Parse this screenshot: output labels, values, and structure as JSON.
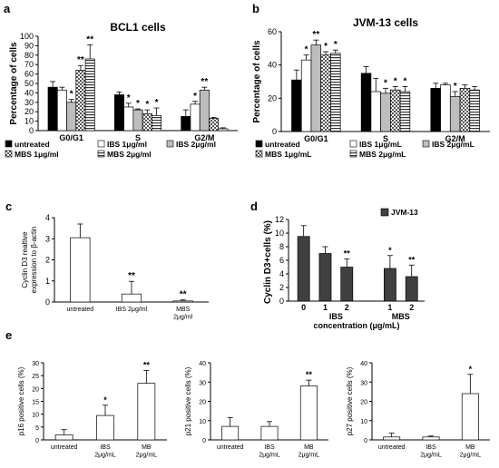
{
  "panels": {
    "a": "a",
    "b": "b",
    "c": "c",
    "d": "d",
    "e": "e"
  },
  "legend_groups": {
    "ab": [
      {
        "name": "untreated",
        "pattern": "p-black"
      },
      {
        "name": "IBS 1μg/ml",
        "pattern": "p-white"
      },
      {
        "name": "IBS 2μg/ml",
        "pattern": "p-gray"
      },
      {
        "name": "MBS 1μg/ml",
        "pattern": "p-check"
      },
      {
        "name": "MBS 2μg/ml",
        "pattern": "p-hstripe"
      }
    ],
    "b": [
      {
        "name": "untreated",
        "pattern": "p-black"
      },
      {
        "name": "IBS 1μg/mL",
        "pattern": "p-white"
      },
      {
        "name": "IBS 2μg/mL",
        "pattern": "p-gray"
      },
      {
        "name": "MBS 1μg/mL",
        "pattern": "p-check"
      },
      {
        "name": "MBS 2μg/mL",
        "pattern": "p-hstripe"
      }
    ]
  },
  "chart_data": [
    {
      "id": "a",
      "type": "bar",
      "title": "BCL1 cells",
      "ylabel": "Percentage of cells",
      "ylim": [
        0,
        100
      ],
      "yticks": [
        0,
        10,
        20,
        30,
        40,
        50,
        60,
        70,
        80,
        90,
        100
      ],
      "categories": [
        "G0/G1",
        "S",
        "G2/M"
      ],
      "series": [
        {
          "name": "untreated",
          "values": [
            46,
            38,
            15
          ],
          "errors": [
            6,
            3,
            7
          ],
          "sig": [
            "",
            "",
            ""
          ]
        },
        {
          "name": "IBS 1μg/ml",
          "values": [
            43,
            25,
            28
          ],
          "errors": [
            3,
            4,
            3
          ],
          "sig": [
            "",
            "*",
            "*"
          ]
        },
        {
          "name": "IBS 2μg/ml",
          "values": [
            30,
            22,
            43
          ],
          "errors": [
            3,
            1,
            3
          ],
          "sig": [
            "*",
            "*",
            "**"
          ]
        },
        {
          "name": "MBS 1μg/ml",
          "values": [
            64,
            18,
            13
          ],
          "errors": [
            5,
            4,
            1
          ],
          "sig": [
            "**",
            "*",
            ""
          ]
        },
        {
          "name": "MBS 2μg/ml",
          "values": [
            76,
            16,
            2
          ],
          "errors": [
            15,
            8,
            1
          ],
          "sig": [
            "**",
            "*",
            ""
          ]
        }
      ]
    },
    {
      "id": "b",
      "type": "bar",
      "title": "JVM-13 cells",
      "ylabel": "Percentage of cells",
      "ylim": [
        0,
        60
      ],
      "yticks": [
        0,
        20,
        40,
        60
      ],
      "categories": [
        "G0/G1",
        "S",
        "G2/M"
      ],
      "series": [
        {
          "name": "untreated",
          "values": [
            31,
            35,
            26
          ],
          "errors": [
            6,
            4,
            3
          ],
          "sig": [
            "",
            "",
            ""
          ]
        },
        {
          "name": "IBS 1μg/mL",
          "values": [
            43,
            24,
            28
          ],
          "errors": [
            3,
            8,
            1
          ],
          "sig": [
            "*",
            "",
            ""
          ]
        },
        {
          "name": "IBS 2μg/mL",
          "values": [
            52,
            23,
            21
          ],
          "errors": [
            3,
            3,
            3
          ],
          "sig": [
            "**",
            "*",
            "*"
          ]
        },
        {
          "name": "MBS 1μg/mL",
          "values": [
            46,
            25,
            26
          ],
          "errors": [
            2,
            2,
            2
          ],
          "sig": [
            "*",
            "*",
            ""
          ]
        },
        {
          "name": "MBS 2μg/mL",
          "values": [
            47,
            24,
            25
          ],
          "errors": [
            2,
            3,
            2
          ],
          "sig": [
            "*",
            "*",
            ""
          ]
        }
      ]
    },
    {
      "id": "c",
      "type": "bar",
      "ylabel_lines": [
        "Cyclin D3 realtive",
        "expression to β-actin"
      ],
      "ylim": [
        0,
        4
      ],
      "yticks": [
        0,
        1,
        2,
        3,
        4
      ],
      "categories": [
        "untreated",
        "IBS 2μg/ml",
        "MBS\n2μg/ml"
      ],
      "values": [
        3.05,
        0.38,
        0.05
      ],
      "errors": [
        0.65,
        0.6,
        0.05
      ],
      "sig": [
        "",
        "**",
        "**"
      ]
    },
    {
      "id": "d",
      "type": "bar",
      "legend": "JVM-13",
      "ylabel": "Cyclin D3+cells (%)",
      "xlabel": "concentration (μg/mL)",
      "ylim": [
        0,
        12
      ],
      "yticks": [
        0,
        2,
        4,
        6,
        8,
        10,
        12
      ],
      "groups": [
        {
          "name": "",
          "categories": [
            "0"
          ],
          "values": [
            9.5
          ],
          "errors": [
            1.6
          ],
          "sig": [
            ""
          ]
        },
        {
          "name": "IBS",
          "categories": [
            "1",
            "2"
          ],
          "values": [
            7.0,
            5.0
          ],
          "errors": [
            1.0,
            1.2
          ],
          "sig": [
            "",
            "**"
          ]
        },
        {
          "name": "MBS",
          "categories": [
            "1",
            "2"
          ],
          "values": [
            4.8,
            3.6
          ],
          "errors": [
            1.9,
            1.7
          ],
          "sig": [
            "*",
            "**"
          ]
        }
      ]
    },
    {
      "id": "e1",
      "type": "bar",
      "ylabel": "p16 positive cells (%)",
      "ylim": [
        0,
        30
      ],
      "yticks": [
        0,
        5,
        10,
        15,
        20,
        25,
        30
      ],
      "categories": [
        "untreated",
        "IBS\n2μg/mL",
        "MB\n2μg/mL"
      ],
      "values": [
        2,
        9.5,
        22
      ],
      "errors": [
        2,
        4,
        5
      ],
      "sig": [
        "",
        "*",
        "**"
      ]
    },
    {
      "id": "e2",
      "type": "bar",
      "ylabel": "p21 positive cells (%)",
      "ylim": [
        0,
        40
      ],
      "yticks": [
        0,
        10,
        20,
        30,
        40
      ],
      "categories": [
        "untreated",
        "IBS\n2μg/mL",
        "MB\n2μg/mL"
      ],
      "values": [
        7,
        7,
        28
      ],
      "errors": [
        4.5,
        2.5,
        3
      ],
      "sig": [
        "",
        "",
        "**"
      ]
    },
    {
      "id": "e3",
      "type": "bar",
      "ylabel": "p27 positive cells (%)",
      "ylim": [
        0,
        40
      ],
      "yticks": [
        0,
        10,
        20,
        30,
        40
      ],
      "categories": [
        "untreated",
        "IBS\n2μg/mL",
        "MB\n2μg/mL"
      ],
      "values": [
        1.5,
        1.5,
        24
      ],
      "errors": [
        2,
        0.5,
        10
      ],
      "sig": [
        "",
        "",
        "*"
      ]
    }
  ]
}
